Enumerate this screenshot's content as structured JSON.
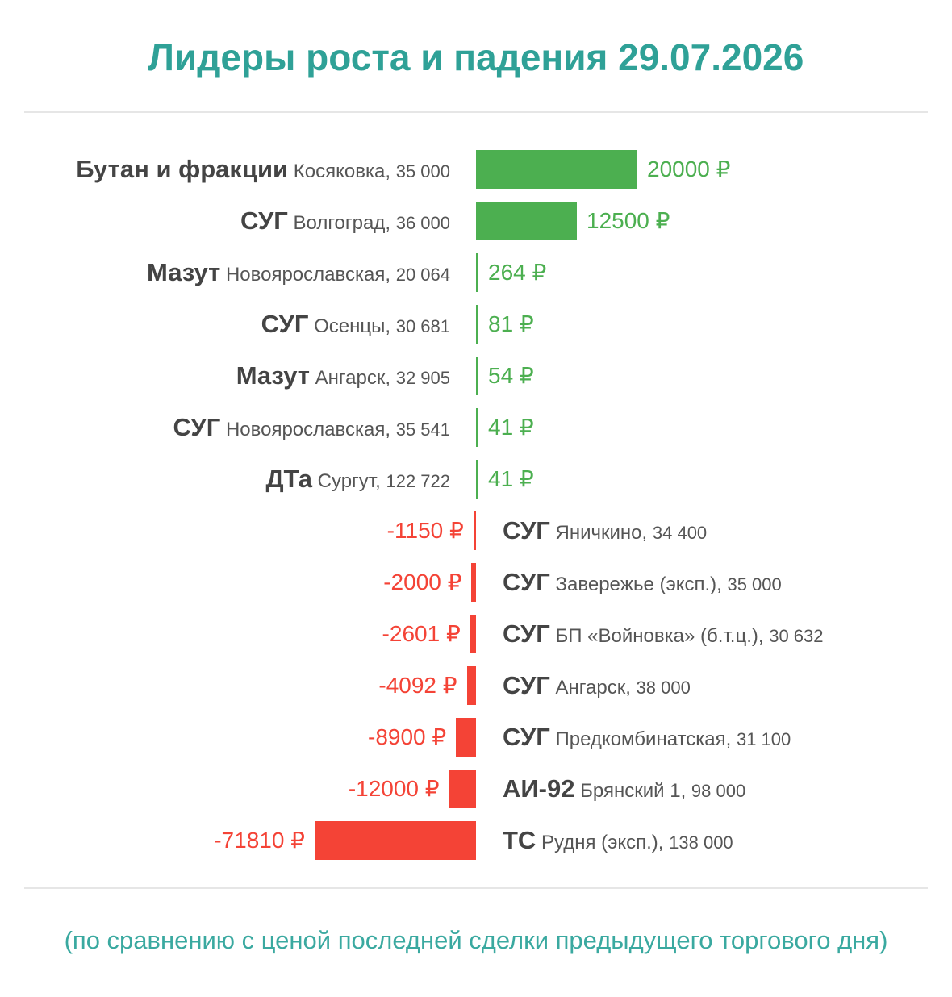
{
  "title": "Лидеры роста и падения 29.07.2026",
  "footnote": "(по сравнению с ценой последней сделки предыдущего торгового дня)",
  "colors": {
    "title": "#2fa197",
    "positive": "#4caf50",
    "negative": "#f44336",
    "footnote": "#3aa9a0",
    "rule": "#e6e6e6"
  },
  "currency": "₽",
  "chart_data": {
    "type": "bar",
    "orientation": "horizontal",
    "categories": [
      "Бутан и фракции Косяковка, 35 000",
      "СУГ Волгоград, 36 000",
      "Мазут Новоярославская, 20 064",
      "СУГ Осенцы, 30 681",
      "Мазут Ангарск, 32 905",
      "СУГ Новоярославская, 35 541",
      "ДТа Сургут, 122 722",
      "СУГ Яничкино, 34 400",
      "СУГ Заверeжье (эксп.), 35 000",
      "СУГ БП «Войновка» (б.т.ц.), 30 632",
      "СУГ Ангарск, 38 000",
      "СУГ Предкомбинатская, 31 100",
      "АИ-92 Брянский 1, 98 000",
      "ТС Рудня (эксп.), 138 000"
    ],
    "values": [
      20000,
      12500,
      264,
      81,
      54,
      41,
      41,
      -1150,
      -2000,
      -2601,
      -4092,
      -8900,
      -12000,
      -71810
    ],
    "value_labels": [
      "20000 ₽",
      "12500 ₽",
      "264 ₽",
      "81 ₽",
      "54 ₽",
      "41 ₽",
      "41 ₽",
      "-1150 ₽",
      "-2000 ₽",
      "-2601 ₽",
      "-4092 ₽",
      "-8900 ₽",
      "-12000 ₽",
      "-71810 ₽"
    ],
    "items": [
      {
        "product": "Бутан и фракции",
        "place": "Косяковка",
        "volume": "35 000"
      },
      {
        "product": "СУГ",
        "place": "Волгоград",
        "volume": "36 000"
      },
      {
        "product": "Мазут",
        "place": "Новоярославская",
        "volume": "20 064"
      },
      {
        "product": "СУГ",
        "place": "Осенцы",
        "volume": "30 681"
      },
      {
        "product": "Мазут",
        "place": "Ангарск",
        "volume": "32 905"
      },
      {
        "product": "СУГ",
        "place": "Новоярославская",
        "volume": "35 541"
      },
      {
        "product": "ДТа",
        "place": "Сургут",
        "volume": "122 722"
      },
      {
        "product": "СУГ",
        "place": "Яничкино",
        "volume": "34 400"
      },
      {
        "product": "СУГ",
        "place": "Заверeжье (эксп.)",
        "volume": "35 000"
      },
      {
        "product": "СУГ",
        "place": "БП «Войновка» (б.т.ц.)",
        "volume": "30 632"
      },
      {
        "product": "СУГ",
        "place": "Ангарск",
        "volume": "38 000"
      },
      {
        "product": "СУГ",
        "place": "Предкомбинатская",
        "volume": "31 100"
      },
      {
        "product": "АИ-92",
        "place": "Брянский 1",
        "volume": "98 000"
      },
      {
        "product": "ТС",
        "place": "Рудня (эксп.)",
        "volume": "138 000"
      }
    ],
    "grid": false,
    "legend": "none"
  }
}
